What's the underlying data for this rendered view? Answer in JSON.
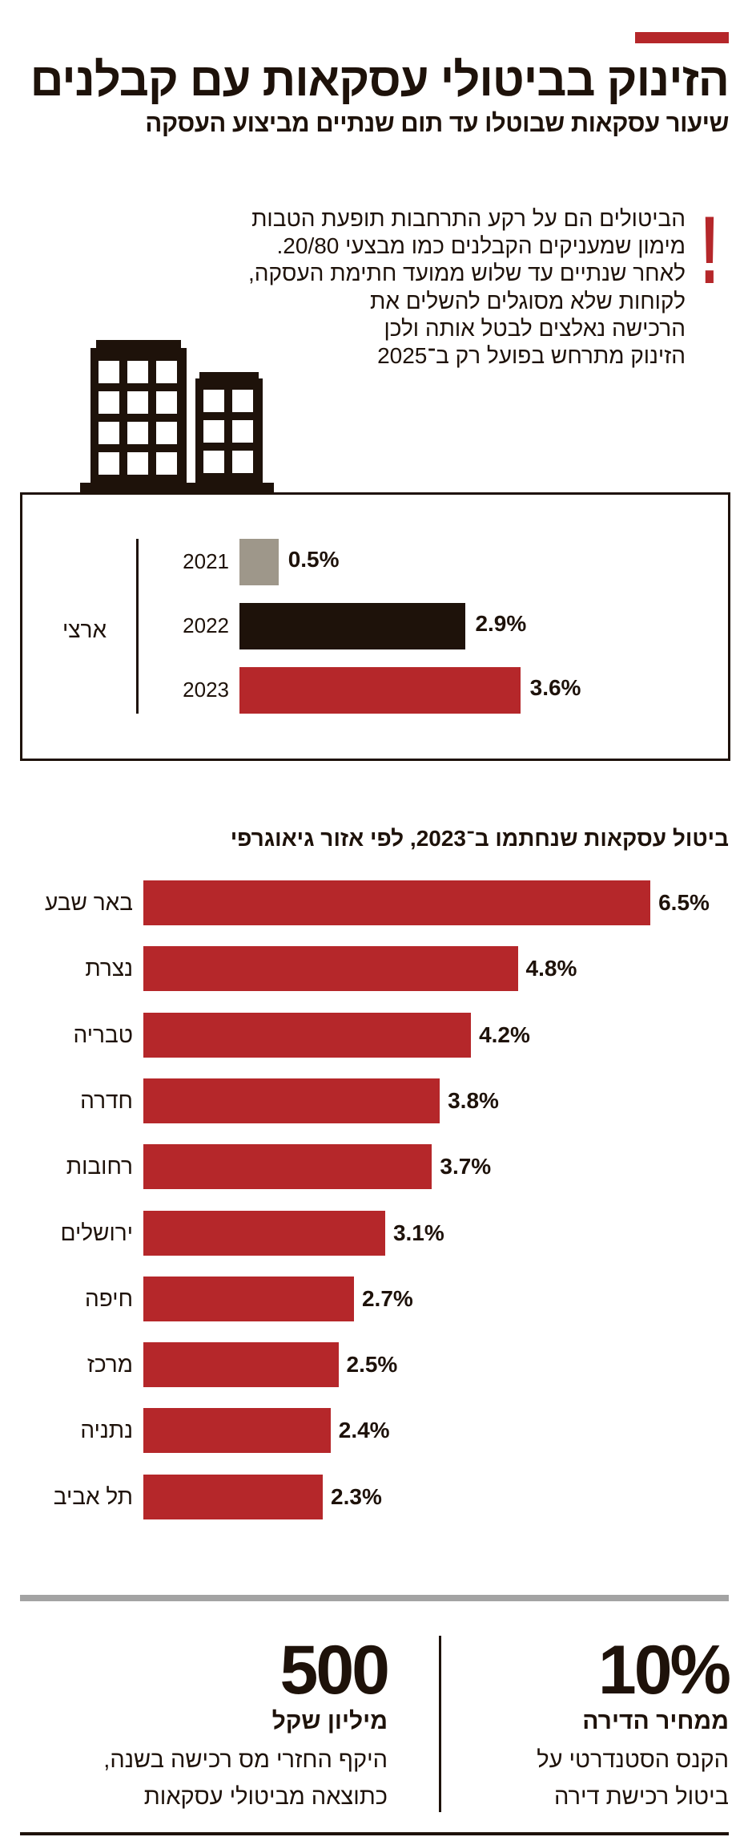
{
  "header": {
    "title": "הזינוק בביטולי עסקאות עם קבלנים",
    "subtitle": "שיעור עסקאות שבוטלו עד תום שנתיים מביצוע העסקה"
  },
  "intro": {
    "icon": "exclamation-icon",
    "mark": "!",
    "lines": [
      "הביטולים הם על רקע התרחבות תופעת הטבות",
      "מימון שמעניקים הקבלנים כמו מבצעי 20/80.",
      "לאחר שנתיים עד שלוש ממועד חתימת העסקה,",
      "לקוחות שלא מסוגלים להשלים את",
      "הרכישה נאלצים לבטל אותה ולכן",
      "הזינוק מתרחש בפועל רק ב־2025"
    ]
  },
  "colors": {
    "accent": "#b5272a",
    "dark": "#1e120a",
    "gray": "#9e978a"
  },
  "chart_data": [
    {
      "type": "bar",
      "orientation": "horizontal",
      "group_label": "ארצי",
      "categories": [
        "2021",
        "2022",
        "2023"
      ],
      "values": [
        0.5,
        2.9,
        3.6
      ],
      "value_labels": [
        "0.5%",
        "2.9%",
        "3.6%"
      ],
      "colors": [
        "#9e978a",
        "#1e120a",
        "#b5272a"
      ],
      "unit": "%"
    },
    {
      "type": "bar",
      "orientation": "horizontal",
      "title": "ביטול עסקאות שנחתמו ב־2023, לפי אזור גיאוגרפי",
      "categories": [
        "באר שבע",
        "נצרת",
        "טבריה",
        "חדרה",
        "רחובות",
        "ירושלים",
        "חיפה",
        "מרכז",
        "נתניה",
        "תל אביב"
      ],
      "values": [
        6.5,
        4.8,
        4.2,
        3.8,
        3.7,
        3.1,
        2.7,
        2.5,
        2.4,
        2.3
      ],
      "value_labels": [
        "6.5%",
        "4.8%",
        "4.2%",
        "3.8%",
        "3.7%",
        "3.1%",
        "2.7%",
        "2.5%",
        "2.4%",
        "2.3%"
      ],
      "color": "#b5272a",
      "unit": "%"
    }
  ],
  "stats": [
    {
      "value": "10%",
      "subtitle": "ממחיר הדירה",
      "lines": [
        "הקנס הסטנדרטי על",
        "ביטול רכישת דירה"
      ]
    },
    {
      "value": "500",
      "subtitle": "מיליון שקל",
      "lines": [
        "היקף החזרי מס רכישה בשנה,",
        "כתוצאה מביטולי עסקאות"
      ]
    }
  ]
}
